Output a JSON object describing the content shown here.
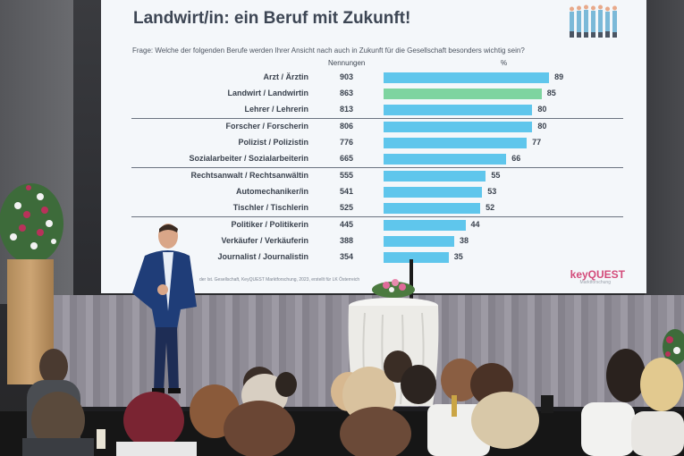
{
  "slide": {
    "title": "Landwirt/in: ein Beruf mit Zukunft!",
    "question": "Frage: Welche der folgenden Berufe werden Ihrer Ansicht nach auch in Zukunft für die Gesellschaft besonders wichtig sein?",
    "col_count_label": "Nennungen",
    "col_pct_label": "%",
    "footnote": "der Ist. Gesellschaft, KeyQUEST Marktforschung, 2023, erstellt für LK Österreich",
    "logo_main": "keyQUEST",
    "logo_sub": "Marktforschung"
  },
  "chart_data": {
    "type": "bar",
    "orientation": "horizontal",
    "title": "Landwirt/in: ein Beruf mit Zukunft!",
    "categories": [
      "Arzt / Ärztin",
      "Landwirt / Landwirtin",
      "Lehrer / Lehrerin",
      "Forscher / Forscherin",
      "Polizist / Polizistin",
      "Sozialarbeiter / Sozialarbeiterin",
      "Rechtsanwalt / Rechtsanwältin",
      "Automechaniker/in",
      "Tischler / Tischlerin",
      "Politiker / Politikerin",
      "Verkäufer / Verkäuferin",
      "Journalist / Journalistin"
    ],
    "counts": [
      "903",
      "863",
      "813",
      "806",
      "776",
      "665",
      "555",
      "541",
      "525",
      "445",
      "388",
      "354"
    ],
    "values": [
      89,
      85,
      80,
      80,
      77,
      66,
      55,
      53,
      52,
      44,
      38,
      35
    ],
    "highlight_index": 1,
    "colors": {
      "bar": "#5fc6ec",
      "highlight": "#7ed4a0"
    },
    "separators_after": [
      2,
      5,
      8
    ]
  }
}
